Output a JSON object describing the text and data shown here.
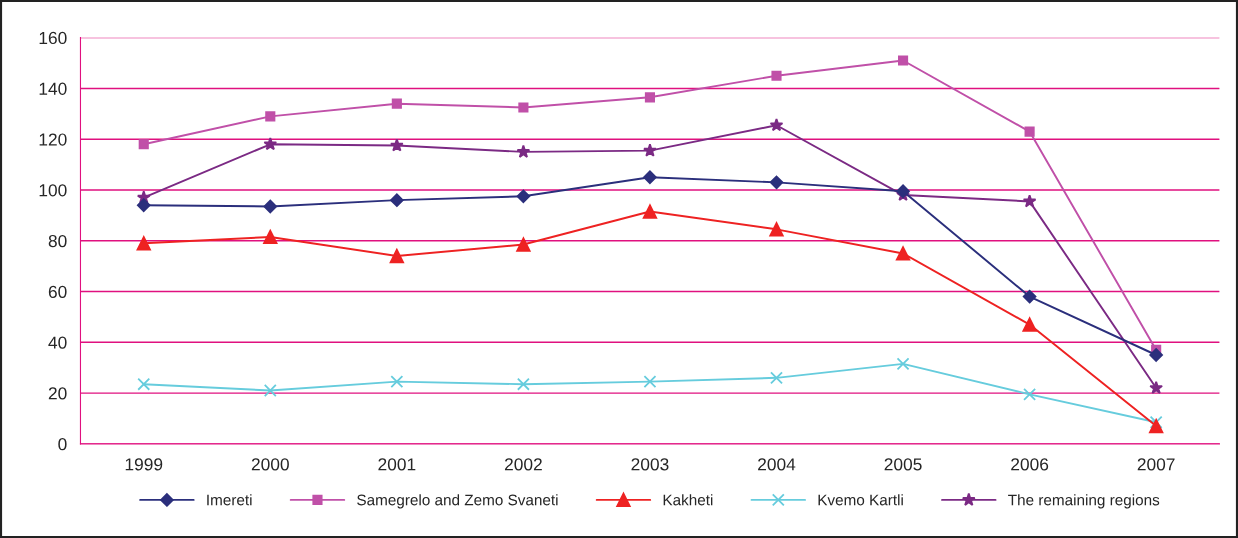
{
  "chart_data": {
    "type": "line",
    "categories": [
      "1999",
      "2000",
      "2001",
      "2002",
      "2003",
      "2004",
      "2005",
      "2006",
      "2007"
    ],
    "series": [
      {
        "name": "Imereti",
        "color": "#2b2f7c",
        "marker": "diamond",
        "values": [
          94,
          93.5,
          96,
          97.5,
          105,
          103,
          99.5,
          58,
          35
        ]
      },
      {
        "name": "Samegrelo and Zemo Svaneti",
        "color": "#c050a8",
        "marker": "square",
        "values": [
          118,
          129,
          134,
          132.5,
          136.5,
          145,
          151,
          123,
          37
        ]
      },
      {
        "name": "Kakheti",
        "color": "#ee2222",
        "marker": "triangle",
        "values": [
          79,
          81.5,
          74,
          78.5,
          91.5,
          84.5,
          75,
          47,
          7
        ]
      },
      {
        "name": "Kvemo Kartli",
        "color": "#66ccdd",
        "marker": "cross",
        "values": [
          23.5,
          21,
          24.5,
          23.5,
          24.5,
          26,
          31.5,
          19.5,
          8.5
        ]
      },
      {
        "name": "The remaining regions",
        "color": "#7b2a84",
        "marker": "star",
        "values": [
          97,
          118,
          117.5,
          115,
          115.5,
          125.5,
          98,
          95.5,
          22
        ]
      }
    ],
    "ylim": [
      0,
      160
    ],
    "yticks": [
      0,
      20,
      40,
      60,
      80,
      100,
      120,
      140,
      160
    ],
    "grid": "y",
    "legend": "bottom",
    "line_style": "solid"
  }
}
